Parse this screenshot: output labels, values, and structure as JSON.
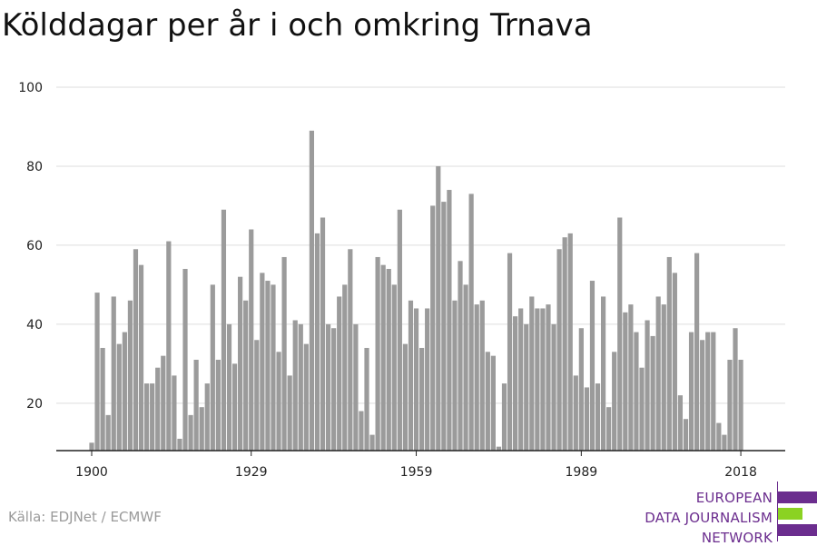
{
  "title": "Kölddagar per år i och omkring Trnava",
  "source": "Källa: EDJNet / ECMWF",
  "logo": {
    "lines": [
      "EUROPEAN",
      "DATA JOURNALISM",
      "NETWORK"
    ],
    "colors": {
      "purple": "#6b2d8e",
      "green": "#8bd222"
    }
  },
  "chart_data": {
    "type": "bar",
    "x_start": 1900,
    "x_ticks": [
      1900,
      1929,
      1959,
      1989,
      2018
    ],
    "y_ticks": [
      20,
      40,
      60,
      80,
      100
    ],
    "ylim": [
      8,
      100
    ],
    "bar_color": "#9b9b9b",
    "grid": true,
    "values": [
      10,
      48,
      34,
      17,
      47,
      35,
      38,
      46,
      59,
      55,
      25,
      25,
      29,
      32,
      61,
      27,
      11,
      54,
      17,
      31,
      19,
      25,
      50,
      31,
      69,
      40,
      30,
      52,
      46,
      64,
      36,
      53,
      51,
      50,
      33,
      57,
      27,
      41,
      40,
      35,
      89,
      63,
      67,
      40,
      39,
      47,
      50,
      59,
      40,
      18,
      34,
      12,
      57,
      55,
      54,
      50,
      69,
      35,
      46,
      44,
      34,
      44,
      70,
      80,
      71,
      74,
      46,
      56,
      50,
      73,
      45,
      46,
      33,
      32,
      9,
      25,
      58,
      42,
      44,
      40,
      47,
      44,
      44,
      45,
      40,
      59,
      62,
      63,
      27,
      39,
      24,
      51,
      25,
      47,
      19,
      33,
      67,
      43,
      45,
      38,
      29,
      41,
      37,
      47,
      45,
      57,
      53,
      22,
      16,
      38,
      58,
      36,
      38,
      38,
      15,
      12,
      31,
      39,
      31
    ]
  }
}
